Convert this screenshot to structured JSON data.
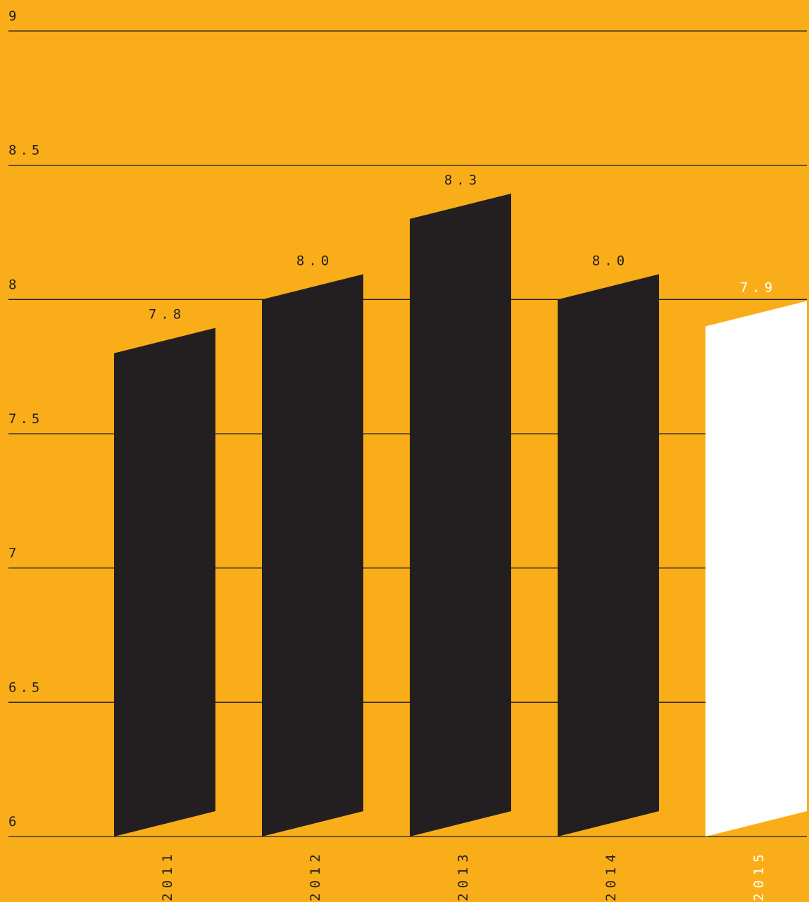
{
  "chart_data": {
    "type": "bar",
    "categories": [
      "2011",
      "2012",
      "2013",
      "2014",
      "2015"
    ],
    "values": [
      7.8,
      8.0,
      8.3,
      8.0,
      7.9
    ],
    "value_labels": [
      "7.8",
      "8.0",
      "8.3",
      "8.0",
      "7.9"
    ],
    "ylim": [
      6,
      9
    ],
    "yticks": [
      9,
      8.5,
      8,
      7.5,
      7,
      6.5,
      6
    ],
    "ytick_labels": [
      "9",
      "8.5",
      "8",
      "7.5",
      "7",
      "6.5",
      "6"
    ],
    "title": "",
    "xlabel": "",
    "ylabel": "",
    "grid": true,
    "highlight_index": 4,
    "colors": {
      "background": "#F9AE19",
      "bar": "#231F20",
      "highlight_bar": "#FFFFFF",
      "grid": "#231F20",
      "text": "#231F20",
      "highlight_text": "#FFFFFF"
    }
  }
}
